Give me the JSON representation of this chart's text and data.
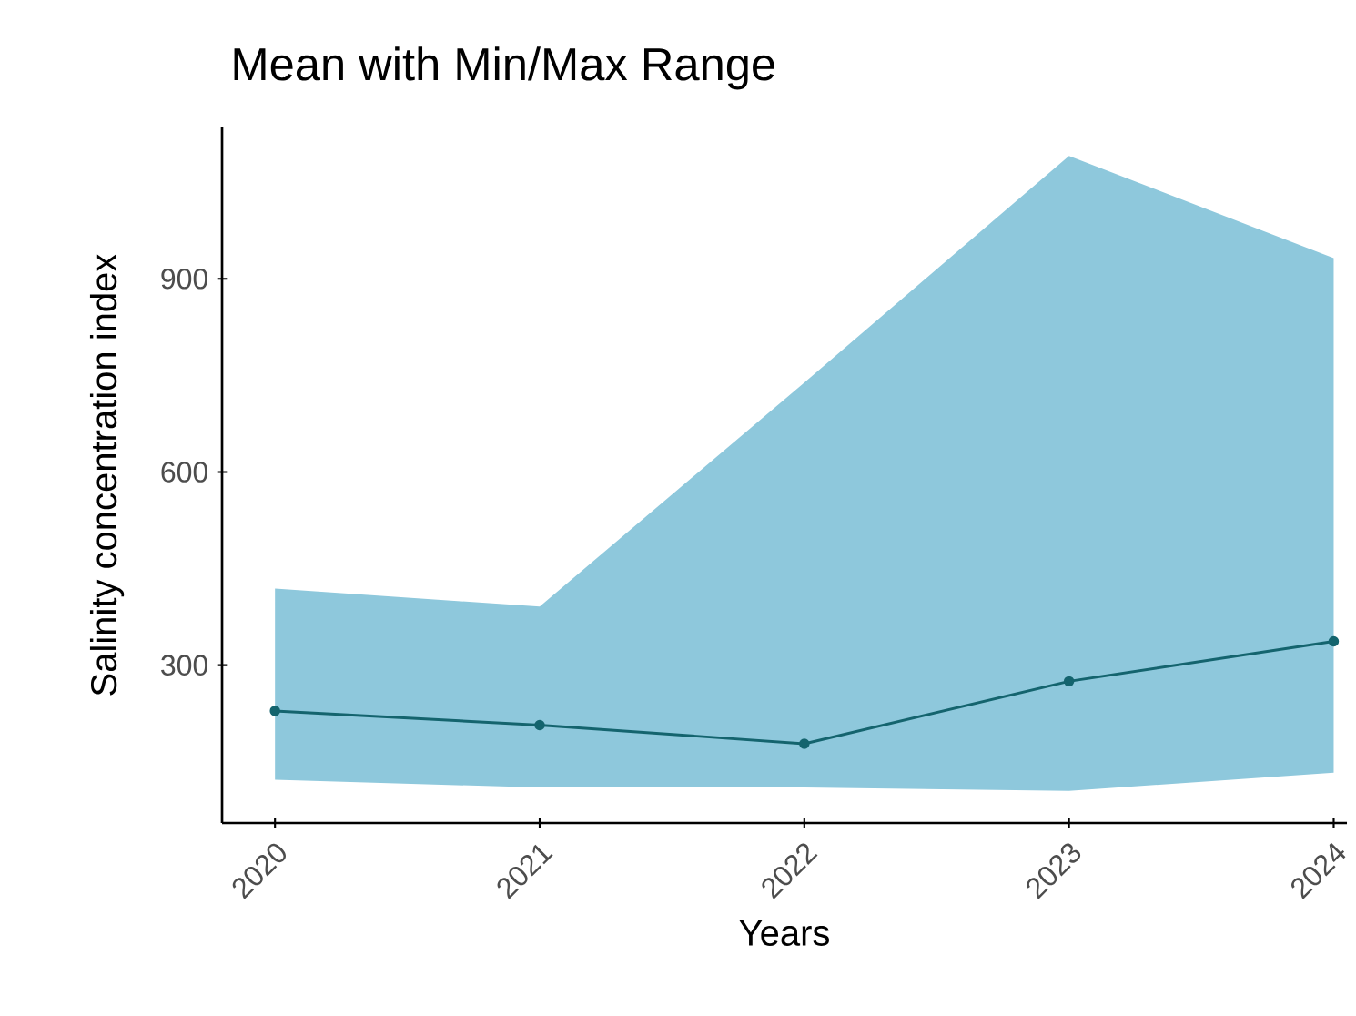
{
  "chart_data": {
    "type": "line",
    "title": "Mean with Min/Max Range",
    "xlabel": "Years",
    "ylabel": "Salinity concentration index",
    "x": [
      2020,
      2021,
      2022,
      2023,
      2024
    ],
    "xlim": [
      2019.8,
      2024.05
    ],
    "xticks": [
      2020,
      2021,
      2022,
      2023,
      2024
    ],
    "ylim": [
      55,
      1135
    ],
    "yticks": [
      300,
      600,
      900
    ],
    "marker": "circle",
    "line_style": "solid",
    "grid": false,
    "series": [
      {
        "color": "#14646e",
        "values": [
          229,
          207,
          178,
          275,
          337
        ],
        "lower": [
          122,
          110,
          110,
          105,
          133
        ],
        "upper": [
          419,
          391,
          739,
          1091,
          932
        ]
      }
    ]
  }
}
